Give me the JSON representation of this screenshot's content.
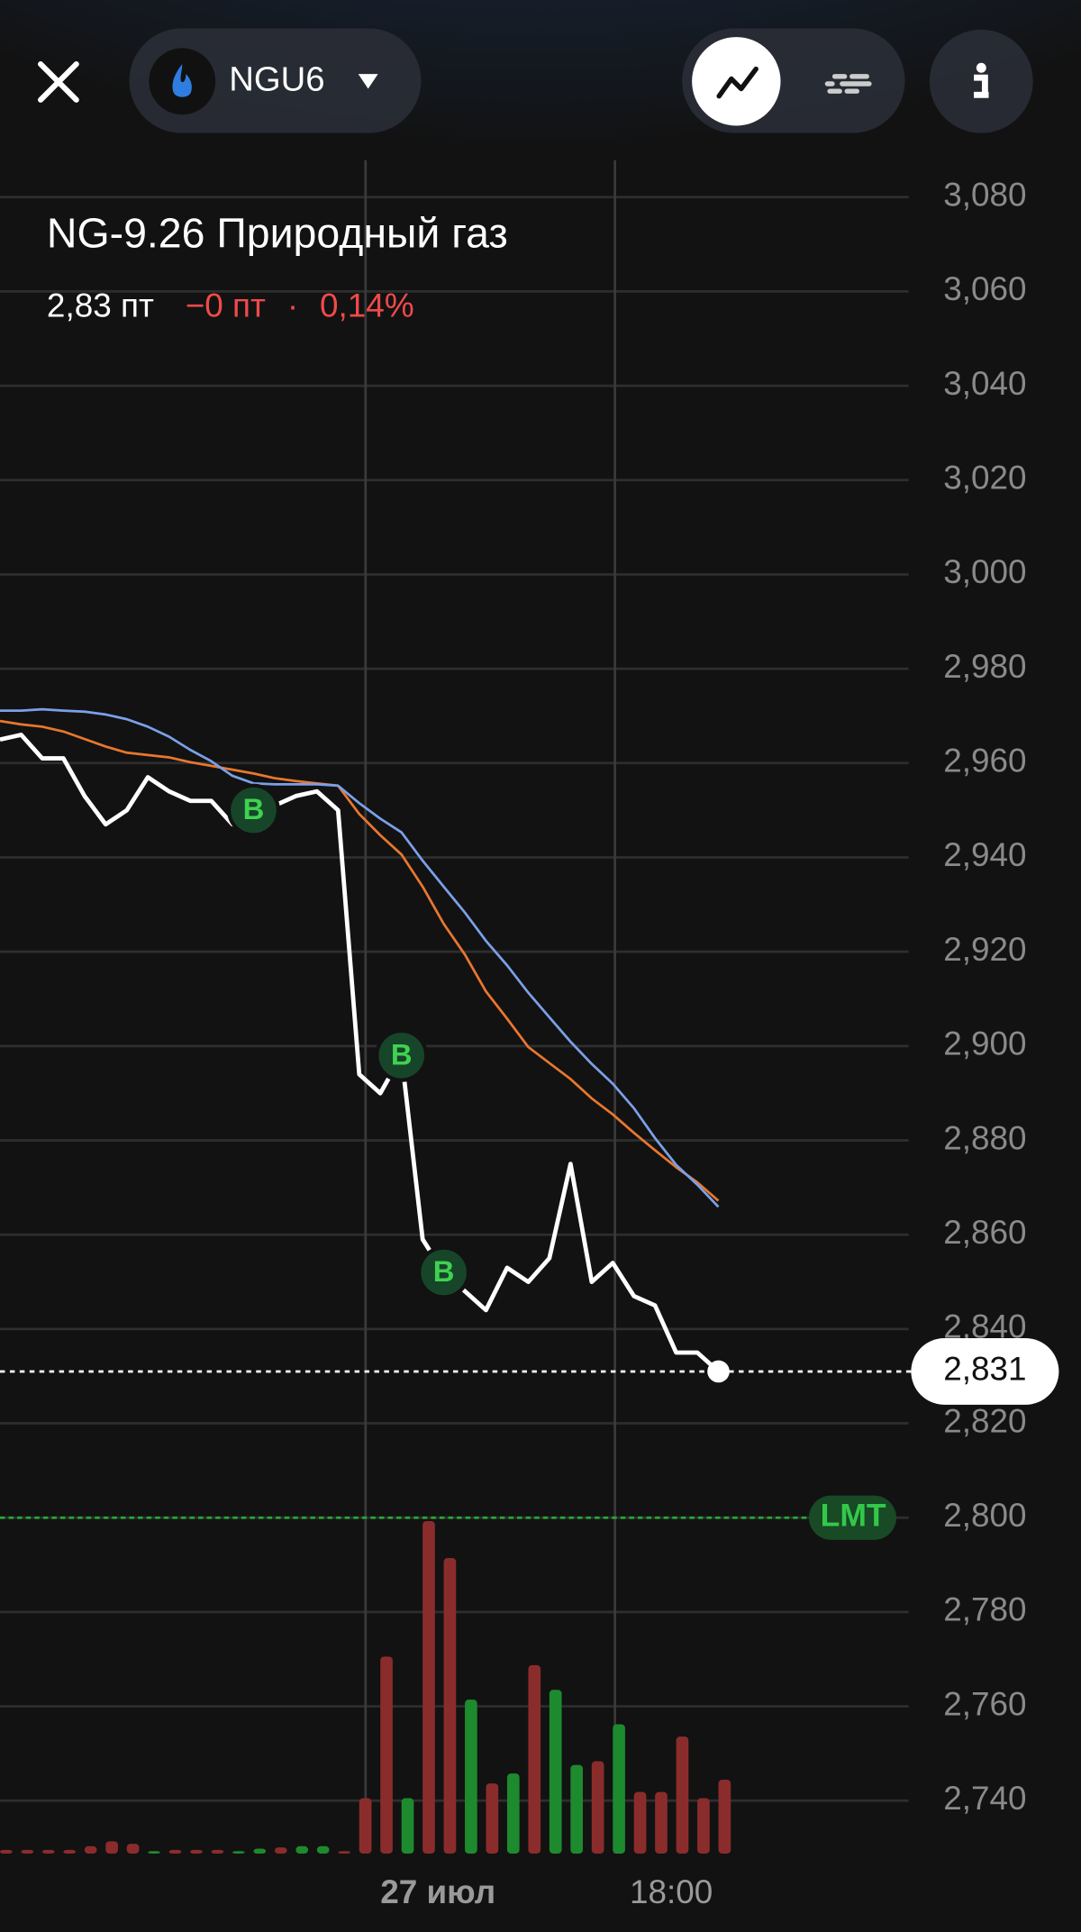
{
  "header": {
    "symbol": "NGU6",
    "title": "NG-9.26 Природный газ",
    "quote": {
      "price": "2,83 пт",
      "change": "−0 пт",
      "separator": "·",
      "percent": "0,14%"
    }
  },
  "chart_data": {
    "type": "line",
    "xlim": [
      0,
      43
    ],
    "xticks": [
      {
        "value": 17.3,
        "label": "27 июл"
      },
      {
        "value": 29.1,
        "label": "18:00"
      }
    ],
    "ylim": [
      2740,
      3080
    ],
    "yticks": [
      {
        "value": 3080,
        "label": "3,080"
      },
      {
        "value": 3060,
        "label": "3,060"
      },
      {
        "value": 3040,
        "label": "3,040"
      },
      {
        "value": 3020,
        "label": "3,020"
      },
      {
        "value": 3000,
        "label": "3,000"
      },
      {
        "value": 2980,
        "label": "2,980"
      },
      {
        "value": 2960,
        "label": "2,960"
      },
      {
        "value": 2940,
        "label": "2,940"
      },
      {
        "value": 2920,
        "label": "2,920"
      },
      {
        "value": 2900,
        "label": "2,900"
      },
      {
        "value": 2880,
        "label": "2,880"
      },
      {
        "value": 2860,
        "label": "2,860"
      },
      {
        "value": 2840,
        "label": "2,840"
      },
      {
        "value": 2820,
        "label": "2,820"
      },
      {
        "value": 2800,
        "label": "2,800"
      },
      {
        "value": 2780,
        "label": "2,780"
      },
      {
        "value": 2760,
        "label": "2,760"
      },
      {
        "value": 2740,
        "label": "2,740"
      }
    ],
    "grid": true,
    "series": [
      {
        "color": "#ffffff",
        "values": [
          2965,
          2966,
          2961,
          2961,
          2953,
          2947,
          2950,
          2957,
          2954,
          2952,
          2952,
          2947,
          2950,
          2951,
          2953,
          2954,
          2950,
          2894,
          2890,
          2898,
          2859,
          2852,
          2848,
          2844,
          2853,
          2850,
          2855,
          2875,
          2850,
          2854,
          2847,
          2845,
          2835,
          2835,
          2831
        ]
      },
      {
        "color": "#e8772e",
        "values": [
          2968.9,
          2968.2,
          2967.7,
          2966.7,
          2965.1,
          2963.5,
          2962.2,
          2961.7,
          2961.2,
          2960.2,
          2959.4,
          2958.6,
          2957.8,
          2956.8,
          2956.2,
          2955.7,
          2955.2,
          2949.2,
          2944.7,
          2940.6,
          2933.8,
          2925.9,
          2919.4,
          2911.6,
          2905.8,
          2899.8,
          2896.4,
          2893.0,
          2888.9,
          2885.5,
          2881.6,
          2877.9,
          2874.3,
          2871.1,
          2867.2
        ]
      },
      {
        "color": "#7ba0e8",
        "values": [
          2971.1,
          2971.1,
          2971.4,
          2971.1,
          2970.9,
          2970.3,
          2969.3,
          2967.7,
          2965.6,
          2962.8,
          2960.4,
          2957.3,
          2955.7,
          2955.5,
          2955.5,
          2955.5,
          2955.2,
          2951.5,
          2948.2,
          2945.3,
          2939.3,
          2933.8,
          2928.3,
          2922.3,
          2917.1,
          2911.3,
          2906.1,
          2900.9,
          2896.2,
          2892.0,
          2886.8,
          2880.5,
          2874.8,
          2870.6,
          2865.9
        ]
      }
    ],
    "volumes": [
      3,
      3,
      3,
      3,
      6,
      10,
      8,
      2,
      3,
      3,
      3,
      2,
      4,
      5,
      6,
      6,
      2,
      45,
      160,
      45,
      270,
      240,
      125,
      57,
      65,
      153,
      133,
      72,
      75,
      105,
      50,
      50,
      95,
      45,
      60
    ],
    "volume_colors": [
      "#8b2c2c",
      "#8b2c2c",
      "#8b2c2c",
      "#8b2c2c",
      "#8b2c2c",
      "#8b2c2c",
      "#8b2c2c",
      "#1e8a2e",
      "#8b2c2c",
      "#8b2c2c",
      "#8b2c2c",
      "#1e8a2e",
      "#1e8a2e",
      "#8b2c2c",
      "#1e8a2e",
      "#1e8a2e",
      "#8b2c2c",
      "#8b2c2c",
      "#8b2c2c",
      "#1e8a2e",
      "#8b2c2c",
      "#8b2c2c",
      "#1e8a2e",
      "#8b2c2c",
      "#1e8a2e",
      "#8b2c2c",
      "#1e8a2e",
      "#1e8a2e",
      "#8b2c2c",
      "#1e8a2e",
      "#8b2c2c",
      "#8b2c2c",
      "#8b2c2c",
      "#8b2c2c",
      "#8b2c2c"
    ],
    "buy_markers": [
      {
        "index": 12,
        "label": "B"
      },
      {
        "index": 19,
        "label": "B"
      },
      {
        "index": 21,
        "label": "B"
      }
    ],
    "last_price": {
      "value": 2831,
      "label": "2,831"
    },
    "limit": {
      "value": 2800,
      "label": "LMT"
    }
  }
}
